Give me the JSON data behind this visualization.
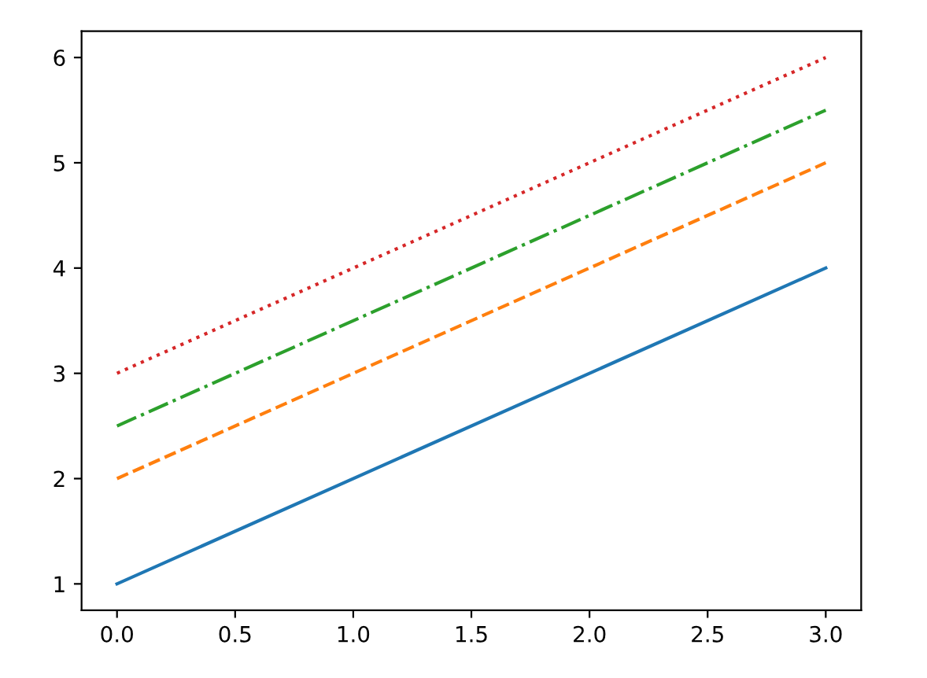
{
  "chart_data": {
    "type": "line",
    "x": [
      0,
      3
    ],
    "series": [
      {
        "color": "#1f77b4",
        "line_style": "solid",
        "values": [
          1,
          4
        ]
      },
      {
        "color": "#ff7f0e",
        "line_style": "dashed",
        "values": [
          2,
          5
        ]
      },
      {
        "color": "#2ca02c",
        "line_style": "dashdot",
        "values": [
          2.5,
          5.5
        ]
      },
      {
        "color": "#d62728",
        "line_style": "dotted",
        "values": [
          3,
          6
        ]
      }
    ],
    "xlim": [
      -0.15,
      3.15
    ],
    "ylim": [
      0.75,
      6.25
    ],
    "xticks": [
      {
        "value": 0,
        "label": "0.0"
      },
      {
        "value": 0.5,
        "label": "0.5"
      },
      {
        "value": 1,
        "label": "1.0"
      },
      {
        "value": 1.5,
        "label": "1.5"
      },
      {
        "value": 2,
        "label": "2.0"
      },
      {
        "value": 2.5,
        "label": "2.5"
      },
      {
        "value": 3,
        "label": "3.0"
      }
    ],
    "yticks": [
      1,
      2,
      3,
      4,
      5,
      6
    ]
  }
}
